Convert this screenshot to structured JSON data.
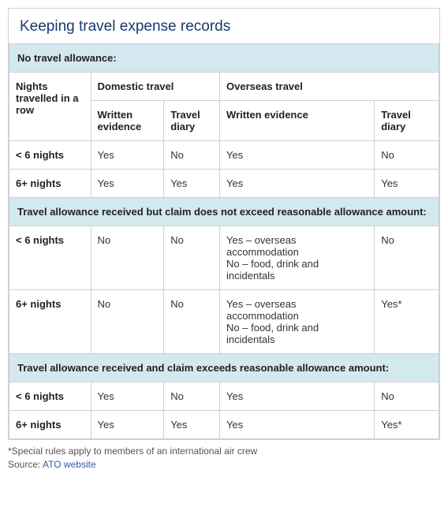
{
  "title": "Keeping travel expense records",
  "columns": {
    "nights": "Nights travelled in a row",
    "domestic": "Domestic travel",
    "overseas": "Overseas travel",
    "written": "Written evidence",
    "diary": "Travel diary"
  },
  "sections": [
    {
      "label": "No travel allowance:",
      "rows": [
        {
          "nights": "< 6 nights",
          "dw": "Yes",
          "dd": "No",
          "ow": "Yes",
          "od": "No"
        },
        {
          "nights": "6+ nights",
          "dw": "Yes",
          "dd": "Yes",
          "ow": "Yes",
          "od": "Yes"
        }
      ]
    },
    {
      "label": "Travel allowance received but claim does not exceed reasonable allowance amount:",
      "rows": [
        {
          "nights": "< 6 nights",
          "dw": "No",
          "dd": "No",
          "ow": "Yes – overseas accommodation\nNo – food, drink and incidentals",
          "od": "No"
        },
        {
          "nights": "6+ nights",
          "dw": "No",
          "dd": "No",
          "ow": "Yes – overseas accommodation\nNo – food, drink and incidentals",
          "od": "Yes*"
        }
      ]
    },
    {
      "label": "Travel allowance received and claim exceeds reasonable allowance amount:",
      "rows": [
        {
          "nights": "< 6 nights",
          "dw": "Yes",
          "dd": "No",
          "ow": "Yes",
          "od": "No"
        },
        {
          "nights": "6+ nights",
          "dw": "Yes",
          "dd": "Yes",
          "ow": "Yes",
          "od": "Yes*"
        }
      ]
    }
  ],
  "footnote": {
    "special": "*Special rules apply to members of an international air crew",
    "source_label": "Source: ",
    "source_link": "ATO website"
  },
  "styling": {
    "title_color": "#1a3a6e",
    "section_bg": "#d4e8f0",
    "border_color": "#d0d0d0",
    "link_color": "#2a5d9e",
    "title_fontsize": 19,
    "body_fontsize": 13,
    "footnote_fontsize": 12,
    "col_widths_pct": [
      19,
      17,
      13,
      36,
      15
    ]
  }
}
